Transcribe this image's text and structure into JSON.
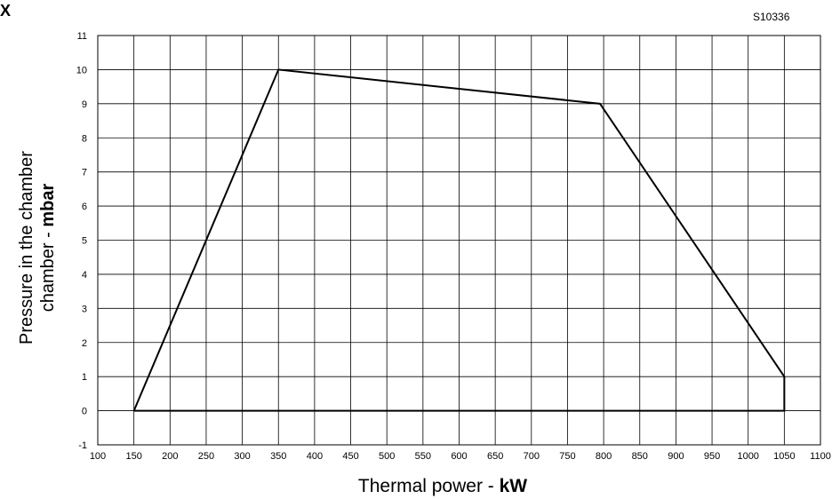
{
  "corner_mark": "X",
  "figure_code": "S10336",
  "chart_data": {
    "type": "line",
    "xlabel_text": "Thermal power - ",
    "xlabel_unit": "kW",
    "ylabel_line1": "Pressure in the chamber",
    "ylabel_line2_text": "chamber - ",
    "ylabel_line2_unit": "mbar",
    "xlim": [
      100,
      1100
    ],
    "ylim": [
      -1,
      11
    ],
    "x_ticks": [
      100,
      150,
      200,
      250,
      300,
      350,
      400,
      450,
      500,
      550,
      600,
      650,
      700,
      750,
      800,
      850,
      900,
      950,
      1000,
      1050,
      1100
    ],
    "y_ticks": [
      -1,
      0,
      1,
      2,
      3,
      4,
      5,
      6,
      7,
      8,
      9,
      10,
      11
    ],
    "grid": true,
    "series": [
      {
        "x": [
          150,
          350,
          795,
          1050,
          1050,
          150
        ],
        "y": [
          0,
          10,
          9,
          1,
          0,
          0
        ]
      }
    ],
    "colors": {
      "line": "#000000",
      "grid": "#000000"
    }
  }
}
